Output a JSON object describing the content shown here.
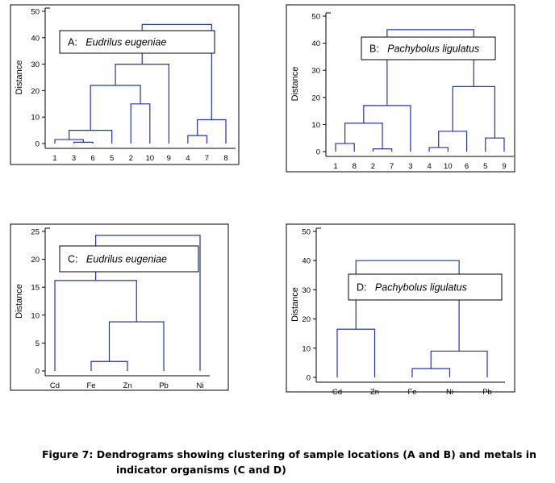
{
  "figure": {
    "caption_line1": "Figure 7: Dendrograms showing clustering of sample locations (A and B) and metals in",
    "caption_line2": "indicator organisms (C and D)"
  },
  "colors": {
    "dendrogram": "#2433b4",
    "axes": "#000000",
    "panel_border": "#000000"
  },
  "chart_data": [
    {
      "type": "dendrogram",
      "panel": "A",
      "legend": {
        "prefix": "A:",
        "species": "Eudrilus eugeniae"
      },
      "ylabel": "Distance",
      "ylim": [
        0,
        50
      ],
      "yticks": [
        0,
        10,
        20,
        30,
        40,
        50
      ],
      "leaves": [
        "1",
        "3",
        "6",
        "5",
        "2",
        "10",
        "9",
        "4",
        "7",
        "8"
      ],
      "merges": [
        {
          "a": "3",
          "b": "6",
          "height": 0.5
        },
        {
          "a": "1",
          "b": [
            "3",
            "6"
          ],
          "height": 1.5
        },
        {
          "a": [
            "1",
            "3",
            "6"
          ],
          "b": "5",
          "height": 5
        },
        {
          "a": "2",
          "b": "10",
          "height": 15
        },
        {
          "a": [
            "1",
            "3",
            "6",
            "5"
          ],
          "b": [
            "2",
            "10"
          ],
          "height": 22
        },
        {
          "a": [
            "1",
            "3",
            "6",
            "5",
            "2",
            "10"
          ],
          "b": "9",
          "height": 30
        },
        {
          "a": "4",
          "b": "7",
          "height": 3
        },
        {
          "a": [
            "4",
            "7"
          ],
          "b": "8",
          "height": 9
        },
        {
          "a": [
            "1",
            "3",
            "6",
            "5",
            "2",
            "10",
            "9"
          ],
          "b": [
            "4",
            "7",
            "8"
          ],
          "height": 45
        }
      ]
    },
    {
      "type": "dendrogram",
      "panel": "B",
      "legend": {
        "prefix": "B:",
        "species": "Pachybolus ligulatus"
      },
      "ylabel": "Distance",
      "ylim": [
        0,
        50
      ],
      "yticks": [
        0,
        10,
        20,
        30,
        40,
        50
      ],
      "leaves": [
        "1",
        "8",
        "2",
        "7",
        "3",
        "4",
        "10",
        "6",
        "5",
        "9"
      ],
      "merges": [
        {
          "a": "1",
          "b": "8",
          "height": 3
        },
        {
          "a": "2",
          "b": "7",
          "height": 1
        },
        {
          "a": [
            "1",
            "8"
          ],
          "b": [
            "2",
            "7"
          ],
          "height": 10.5
        },
        {
          "a": [
            "1",
            "8",
            "2",
            "7"
          ],
          "b": "3",
          "height": 17
        },
        {
          "a": "4",
          "b": "10",
          "height": 1.5
        },
        {
          "a": [
            "4",
            "10"
          ],
          "b": "6",
          "height": 7.5
        },
        {
          "a": "5",
          "b": "9",
          "height": 5
        },
        {
          "a": [
            "4",
            "10",
            "6"
          ],
          "b": [
            "5",
            "9"
          ],
          "height": 24
        },
        {
          "a": [
            "1",
            "8",
            "2",
            "7",
            "3"
          ],
          "b": [
            "4",
            "10",
            "6",
            "5",
            "9"
          ],
          "height": 45
        }
      ]
    },
    {
      "type": "dendrogram",
      "panel": "C",
      "legend": {
        "prefix": "C:",
        "species": "Eudrilus eugeniae"
      },
      "ylabel": "Distance",
      "ylim": [
        0,
        25
      ],
      "yticks": [
        0,
        5,
        10,
        15,
        20,
        25
      ],
      "leaves": [
        "Cd",
        "Fe",
        "Zn",
        "Pb",
        "Ni"
      ],
      "merges": [
        {
          "a": "Fe",
          "b": "Zn",
          "height": 1.7
        },
        {
          "a": [
            "Fe",
            "Zn"
          ],
          "b": "Pb",
          "height": 8.8
        },
        {
          "a": "Cd",
          "b": [
            "Fe",
            "Zn",
            "Pb"
          ],
          "height": 16.2
        },
        {
          "a": [
            "Cd",
            "Fe",
            "Zn",
            "Pb"
          ],
          "b": "Ni",
          "height": 24.3
        }
      ]
    },
    {
      "type": "dendrogram",
      "panel": "D",
      "legend": {
        "prefix": "D:",
        "species": "Pachybolus ligulatus"
      },
      "ylabel": "Distance",
      "ylim": [
        0,
        50
      ],
      "yticks": [
        0,
        10,
        20,
        30,
        40,
        50
      ],
      "leaves": [
        "Cd",
        "Zn",
        "Fe",
        "Ni",
        "Pb"
      ],
      "merges": [
        {
          "a": "Cd",
          "b": "Zn",
          "height": 16.5
        },
        {
          "a": "Fe",
          "b": "Ni",
          "height": 3
        },
        {
          "a": [
            "Fe",
            "Ni"
          ],
          "b": "Pb",
          "height": 9
        },
        {
          "a": [
            "Cd",
            "Zn"
          ],
          "b": [
            "Fe",
            "Ni",
            "Pb"
          ],
          "height": 40
        }
      ]
    }
  ]
}
